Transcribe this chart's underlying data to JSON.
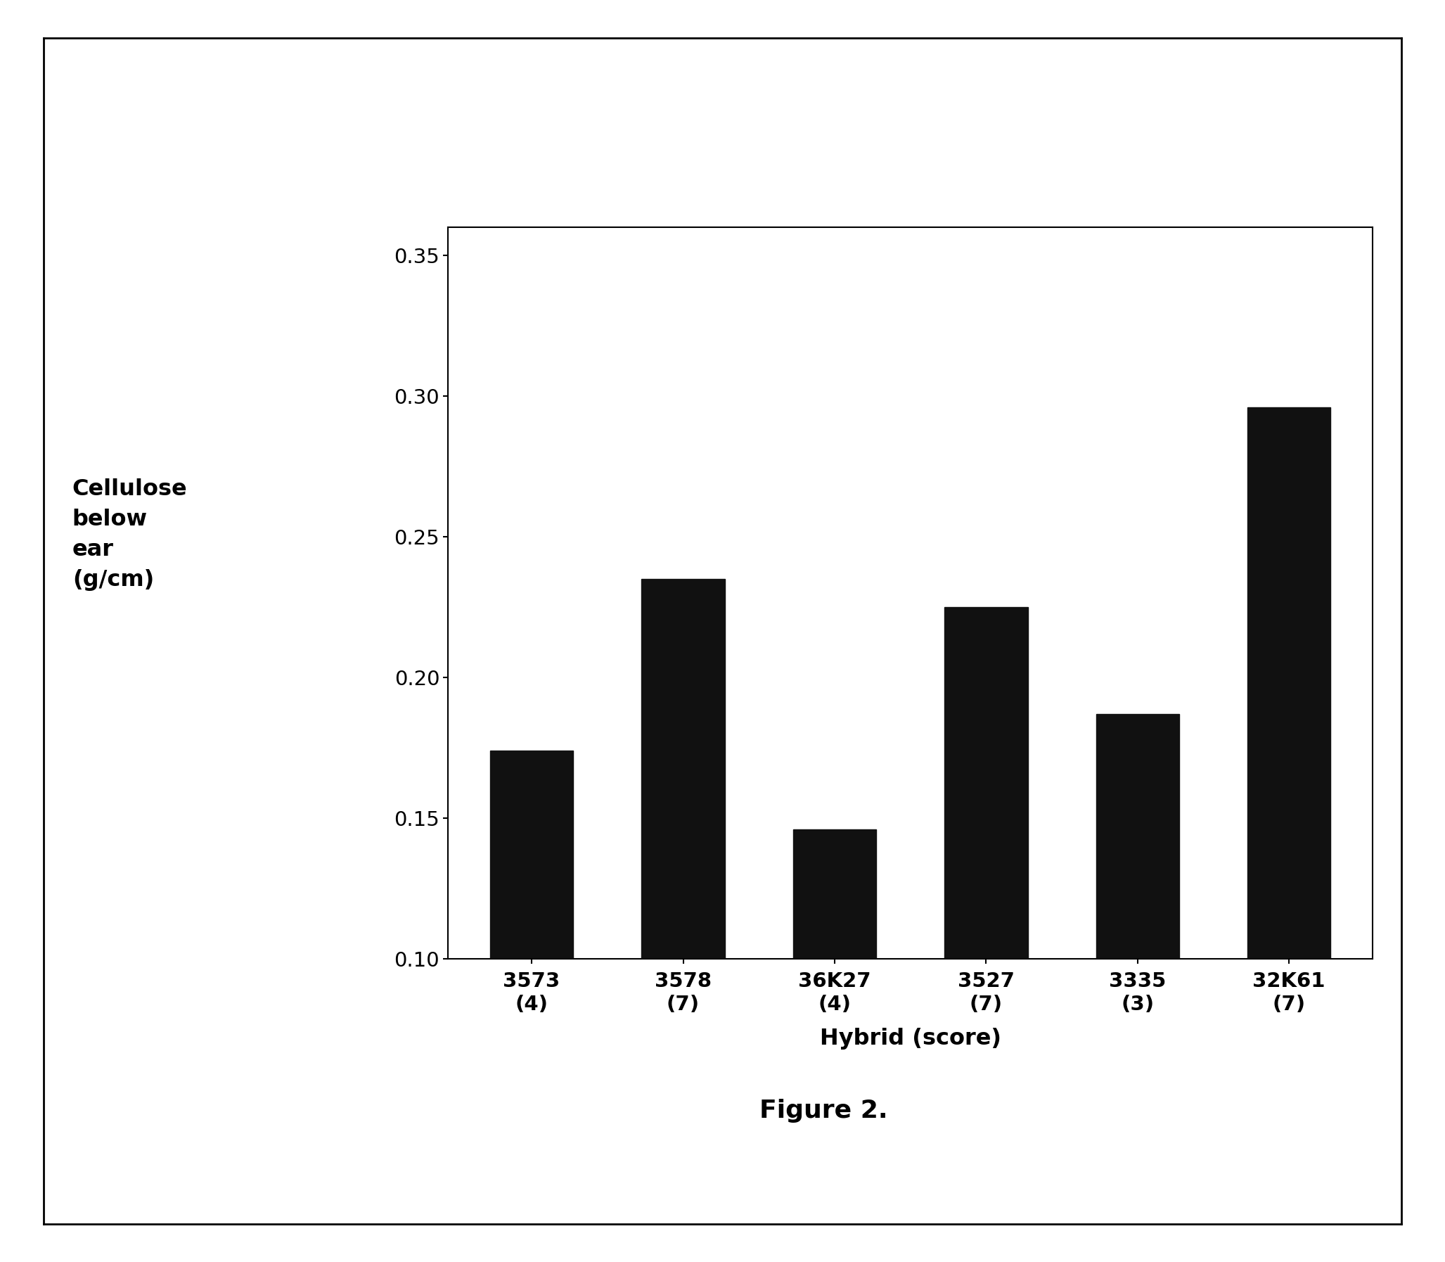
{
  "categories": [
    "3573\n(4)",
    "3578\n(7)",
    "36K27\n(4)",
    "3527\n(7)",
    "3335\n(3)",
    "32K61\n(7)"
  ],
  "values": [
    0.174,
    0.235,
    0.146,
    0.225,
    0.187,
    0.296
  ],
  "bar_color": "#111111",
  "ylabel_lines": [
    "Cellulose",
    "below",
    "ear",
    "(g/cm)"
  ],
  "xlabel": "Hybrid (score)",
  "ylim": [
    0.1,
    0.36
  ],
  "yticks": [
    0.1,
    0.15,
    0.2,
    0.25,
    0.3,
    0.35
  ],
  "figure_caption": "Figure 2.",
  "background_color": "#ffffff",
  "bar_width": 0.55,
  "tick_fontsize": 21,
  "label_fontsize": 23,
  "caption_fontsize": 26,
  "border_linewidth": 2.0
}
